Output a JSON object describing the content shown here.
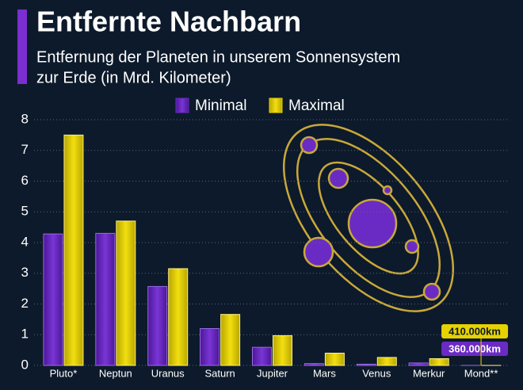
{
  "chart_data": {
    "type": "bar",
    "title": "Entfernte Nachbarn",
    "subtitle": [
      "Entfernung der Planeten in unserem Sonnensystem",
      "zur Erde (in Mrd. Kilometer)"
    ],
    "categories": [
      "Pluto*",
      "Neptun",
      "Uranus",
      "Saturn",
      "Jupiter",
      "Mars",
      "Venus",
      "Merkur",
      "Mond**"
    ],
    "series": [
      {
        "name": "Minimal",
        "color": "#6a2bc4",
        "values": [
          4.28,
          4.3,
          2.57,
          1.2,
          0.59,
          0.06,
          0.04,
          0.08,
          0.00036
        ],
        "value_labels": [
          null,
          null,
          null,
          null,
          null,
          null,
          null,
          null,
          "360.000km"
        ]
      },
      {
        "name": "Maximal",
        "color": "#e6d200",
        "values": [
          7.5,
          4.7,
          3.15,
          1.66,
          0.97,
          0.4,
          0.26,
          0.22,
          0.00041
        ],
        "value_labels": [
          null,
          null,
          null,
          null,
          null,
          null,
          null,
          null,
          "410.000km"
        ]
      }
    ],
    "ylim": [
      0,
      8
    ],
    "yticks": [
      0,
      1,
      2,
      3,
      4,
      5,
      6,
      7,
      8
    ],
    "grid": true
  }
}
